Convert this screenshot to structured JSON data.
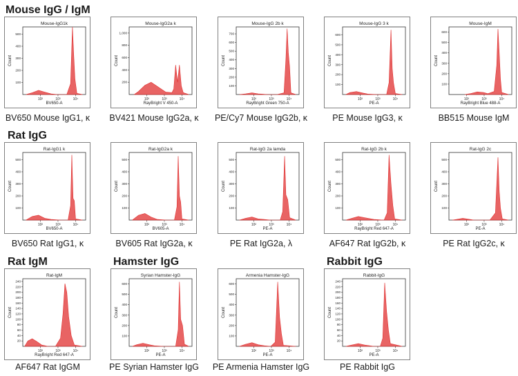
{
  "sections": [
    {
      "title": "Mouse IgG / IgM"
    },
    {
      "title": "Rat IgG"
    },
    {
      "title": "Rat IgM"
    },
    {
      "title": "Hamster IgG"
    },
    {
      "title": "Rabbit IgG"
    }
  ],
  "panels": [
    {
      "caption": "BV650 Mouse IgG1, κ"
    },
    {
      "caption": "BV421 Mouse IgG2a, κ"
    },
    {
      "caption": "PE/Cy7 Mouse IgG2b, κ"
    },
    {
      "caption": "PE Mouse IgG3, κ"
    },
    {
      "caption": "BB515 Mouse IgM"
    },
    {
      "caption": "BV650 Rat IgG1, κ"
    },
    {
      "caption": "BV605 Rat IgG2a, κ"
    },
    {
      "caption": "PE Rat IgG2a, λ"
    },
    {
      "caption": "AF647 Rat IgG2b, κ"
    },
    {
      "caption": "PE Rat IgG2c, κ"
    },
    {
      "caption": "AF647 Rat IgGM"
    },
    {
      "caption": "PE Syrian Hamster IgG"
    },
    {
      "caption": "PE Armenia Hamster IgG"
    },
    {
      "caption": "PE Rabbit IgG"
    }
  ],
  "chart_data": [
    {
      "type": "area",
      "title": "Mouse-IgG1k",
      "xlabel": "BV650-A",
      "ylabel": "Count",
      "x_ticks": [
        "10²",
        "10³",
        "10⁴"
      ],
      "y_ticks": [
        "100",
        "200",
        "300",
        "400",
        "500"
      ],
      "ylim": [
        0,
        560
      ],
      "series": [
        {
          "color": "#e03030",
          "x": [
            0.05,
            0.15,
            0.25,
            0.35,
            0.45,
            0.55,
            0.7,
            0.76,
            0.79,
            0.81,
            0.83,
            0.86,
            0.95
          ],
          "values": [
            0,
            15,
            35,
            20,
            5,
            0,
            0,
            90,
            560,
            330,
            130,
            10,
            0
          ]
        }
      ]
    },
    {
      "type": "area",
      "title": "Mouse-IgG2a k",
      "xlabel": "RayBright V 450-A",
      "ylabel": "Count",
      "x_ticks": [
        "10²",
        "10³",
        "10⁴"
      ],
      "y_ticks": [
        "200",
        "400",
        "600",
        "800",
        "1,000"
      ],
      "ylim": [
        0,
        1100
      ],
      "series": [
        {
          "color": "#e03030",
          "x": [
            0.08,
            0.15,
            0.25,
            0.35,
            0.45,
            0.58,
            0.68,
            0.71,
            0.74,
            0.77,
            0.8,
            0.83,
            0.86,
            0.95
          ],
          "values": [
            0,
            50,
            150,
            200,
            130,
            40,
            30,
            90,
            480,
            200,
            480,
            140,
            30,
            0
          ]
        }
      ]
    },
    {
      "type": "area",
      "title": "Mouse-IgG 2b k",
      "xlabel": "RayBright Green 750-A",
      "ylabel": "Count",
      "x_ticks": [
        "10²",
        "10³",
        "10⁴"
      ],
      "y_ticks": [
        "100",
        "200",
        "300",
        "400",
        "500",
        "600",
        "700"
      ],
      "ylim": [
        0,
        780
      ],
      "series": [
        {
          "color": "#e03030",
          "x": [
            0.05,
            0.15,
            0.25,
            0.35,
            0.5,
            0.65,
            0.76,
            0.79,
            0.81,
            0.83,
            0.85,
            0.87,
            0.95
          ],
          "values": [
            0,
            8,
            20,
            8,
            0,
            0,
            20,
            400,
            760,
            480,
            320,
            20,
            0
          ]
        }
      ]
    },
    {
      "type": "area",
      "title": "Mouse-IgG 3 k",
      "xlabel": "PE-A",
      "ylabel": "Count",
      "x_ticks": [
        "10²",
        "10³",
        "10⁴"
      ],
      "y_ticks": [
        "100",
        "200",
        "300",
        "400",
        "500",
        "600"
      ],
      "ylim": [
        0,
        680
      ],
      "series": [
        {
          "color": "#e03030",
          "x": [
            0.05,
            0.12,
            0.22,
            0.32,
            0.4,
            0.55,
            0.7,
            0.74,
            0.77,
            0.79,
            0.81,
            0.84,
            0.95
          ],
          "values": [
            0,
            20,
            30,
            15,
            5,
            0,
            0,
            120,
            650,
            260,
            120,
            10,
            0
          ]
        }
      ]
    },
    {
      "type": "area",
      "title": "Mouse-IgM",
      "xlabel": "RayBright Blue 488-A",
      "ylabel": "Count",
      "x_ticks": [
        "10²",
        "10³",
        "10⁴"
      ],
      "y_ticks": [
        "100",
        "200",
        "300",
        "400",
        "500",
        "600"
      ],
      "ylim": [
        0,
        650
      ],
      "series": [
        {
          "color": "#e03030",
          "x": [
            0.25,
            0.35,
            0.45,
            0.55,
            0.62,
            0.72,
            0.76,
            0.78,
            0.8,
            0.82,
            0.84,
            0.95
          ],
          "values": [
            0,
            10,
            25,
            20,
            8,
            30,
            280,
            630,
            400,
            150,
            20,
            0
          ]
        }
      ]
    },
    {
      "type": "area",
      "title": "Rat-IgG1 k",
      "xlabel": "BV650-A",
      "ylabel": "Count",
      "x_ticks": [
        "10²",
        "10³",
        "10⁴"
      ],
      "y_ticks": [
        "100",
        "200",
        "300",
        "400",
        "500"
      ],
      "ylim": [
        0,
        560
      ],
      "series": [
        {
          "color": "#e03030",
          "x": [
            0.05,
            0.15,
            0.25,
            0.35,
            0.45,
            0.6,
            0.72,
            0.76,
            0.78,
            0.8,
            0.82,
            0.84,
            0.95
          ],
          "values": [
            0,
            30,
            40,
            15,
            5,
            0,
            0,
            120,
            540,
            180,
            160,
            10,
            0
          ]
        }
      ]
    },
    {
      "type": "area",
      "title": "Rat-IgG2a k",
      "xlabel": "BV605-A",
      "ylabel": "Count",
      "x_ticks": [
        "10²",
        "10³",
        "10⁴"
      ],
      "y_ticks": [
        "100",
        "200",
        "300",
        "400",
        "500"
      ],
      "ylim": [
        0,
        560
      ],
      "series": [
        {
          "color": "#e03030",
          "x": [
            0.05,
            0.15,
            0.25,
            0.35,
            0.45,
            0.6,
            0.72,
            0.76,
            0.78,
            0.8,
            0.82,
            0.84,
            0.95
          ],
          "values": [
            0,
            40,
            55,
            25,
            5,
            0,
            0,
            110,
            530,
            200,
            150,
            10,
            0
          ]
        }
      ]
    },
    {
      "type": "area",
      "title": "Rat-IgG 2a lamda",
      "xlabel": "PE-A",
      "ylabel": "Count",
      "x_ticks": [
        "10²",
        "10³",
        "10⁴"
      ],
      "y_ticks": [
        "100",
        "200",
        "300",
        "400",
        "500"
      ],
      "ylim": [
        0,
        560
      ],
      "series": [
        {
          "color": "#e03030",
          "x": [
            0.05,
            0.15,
            0.25,
            0.35,
            0.55,
            0.7,
            0.74,
            0.77,
            0.79,
            0.82,
            0.85,
            0.95
          ],
          "values": [
            0,
            15,
            25,
            10,
            0,
            0,
            70,
            530,
            210,
            170,
            20,
            0
          ]
        }
      ]
    },
    {
      "type": "area",
      "title": "Rat-IgG 2b k",
      "xlabel": "RayBright Red 647-A",
      "ylabel": "Count",
      "x_ticks": [
        "10²",
        "10³",
        "10⁴"
      ],
      "y_ticks": [
        "100",
        "200",
        "300",
        "400",
        "500"
      ],
      "ylim": [
        0,
        560
      ],
      "series": [
        {
          "color": "#e03030",
          "x": [
            0.05,
            0.15,
            0.25,
            0.35,
            0.5,
            0.66,
            0.71,
            0.74,
            0.77,
            0.8,
            0.83,
            0.95
          ],
          "values": [
            0,
            15,
            30,
            20,
            5,
            0,
            60,
            540,
            300,
            120,
            10,
            0
          ]
        }
      ]
    },
    {
      "type": "area",
      "title": "Rat-IgG 2c",
      "xlabel": "PE-A",
      "ylabel": "Count",
      "x_ticks": [
        "10²",
        "10³",
        "10⁴"
      ],
      "y_ticks": [
        "100",
        "200",
        "300",
        "400",
        "500"
      ],
      "ylim": [
        0,
        560
      ],
      "series": [
        {
          "color": "#e03030",
          "x": [
            0.05,
            0.12,
            0.22,
            0.3,
            0.4,
            0.65,
            0.74,
            0.78,
            0.8,
            0.82,
            0.85,
            0.95
          ],
          "values": [
            0,
            5,
            15,
            8,
            0,
            0,
            60,
            520,
            240,
            100,
            10,
            0
          ]
        }
      ]
    },
    {
      "type": "area",
      "title": "Rat-IgM",
      "xlabel": "RayBright Red 647-A",
      "ylabel": "Count",
      "x_ticks": [
        "10²",
        "10³",
        "10⁴"
      ],
      "y_ticks": [
        "20",
        "40",
        "60",
        "80",
        "100",
        "120",
        "140",
        "160",
        "180",
        "200",
        "220",
        "240"
      ],
      "ylim": [
        0,
        250
      ],
      "series": [
        {
          "color": "#e03030",
          "x": [
            0.03,
            0.08,
            0.15,
            0.22,
            0.3,
            0.4,
            0.52,
            0.6,
            0.64,
            0.67,
            0.7,
            0.73,
            0.77,
            0.82,
            0.95
          ],
          "values": [
            0,
            20,
            28,
            18,
            5,
            0,
            0,
            30,
            120,
            232,
            200,
            110,
            40,
            5,
            0
          ]
        }
      ]
    },
    {
      "type": "area",
      "title": "Syrian Hamster-IgG",
      "xlabel": "PE-A",
      "ylabel": "Count",
      "x_ticks": [
        "10²",
        "10³",
        "10⁴"
      ],
      "y_ticks": [
        "100",
        "200",
        "300",
        "400",
        "500",
        "600"
      ],
      "ylim": [
        0,
        650
      ],
      "series": [
        {
          "color": "#e03030",
          "x": [
            0.05,
            0.12,
            0.22,
            0.32,
            0.4,
            0.55,
            0.74,
            0.78,
            0.8,
            0.82,
            0.85,
            0.88,
            0.95
          ],
          "values": [
            0,
            15,
            30,
            15,
            5,
            0,
            0,
            160,
            620,
            260,
            200,
            20,
            0
          ]
        }
      ]
    },
    {
      "type": "area",
      "title": "Armenia Hamster-IgG",
      "xlabel": "PE-A",
      "ylabel": "Count",
      "x_ticks": [
        "10²",
        "10³",
        "10⁴"
      ],
      "y_ticks": [
        "100",
        "200",
        "300",
        "400",
        "500",
        "600"
      ],
      "ylim": [
        0,
        650
      ],
      "series": [
        {
          "color": "#e03030",
          "x": [
            0.05,
            0.15,
            0.25,
            0.35,
            0.45,
            0.55,
            0.62,
            0.66,
            0.69,
            0.72,
            0.75,
            0.95
          ],
          "values": [
            0,
            20,
            35,
            15,
            5,
            0,
            40,
            620,
            280,
            120,
            10,
            0
          ]
        }
      ]
    },
    {
      "type": "area",
      "title": "Rabbit-IgG",
      "xlabel": "PE-A",
      "ylabel": "Count",
      "x_ticks": [
        "10²",
        "10³",
        "10⁴"
      ],
      "y_ticks": [
        "20",
        "40",
        "60",
        "80",
        "100",
        "120",
        "140",
        "160",
        "180",
        "200",
        "220",
        "240"
      ],
      "ylim": [
        0,
        250
      ],
      "series": [
        {
          "color": "#e03030",
          "x": [
            0.05,
            0.15,
            0.25,
            0.35,
            0.5,
            0.6,
            0.64,
            0.67,
            0.7,
            0.73,
            0.76,
            0.95
          ],
          "values": [
            0,
            5,
            10,
            5,
            0,
            0,
            30,
            235,
            130,
            60,
            10,
            0
          ]
        }
      ]
    }
  ]
}
